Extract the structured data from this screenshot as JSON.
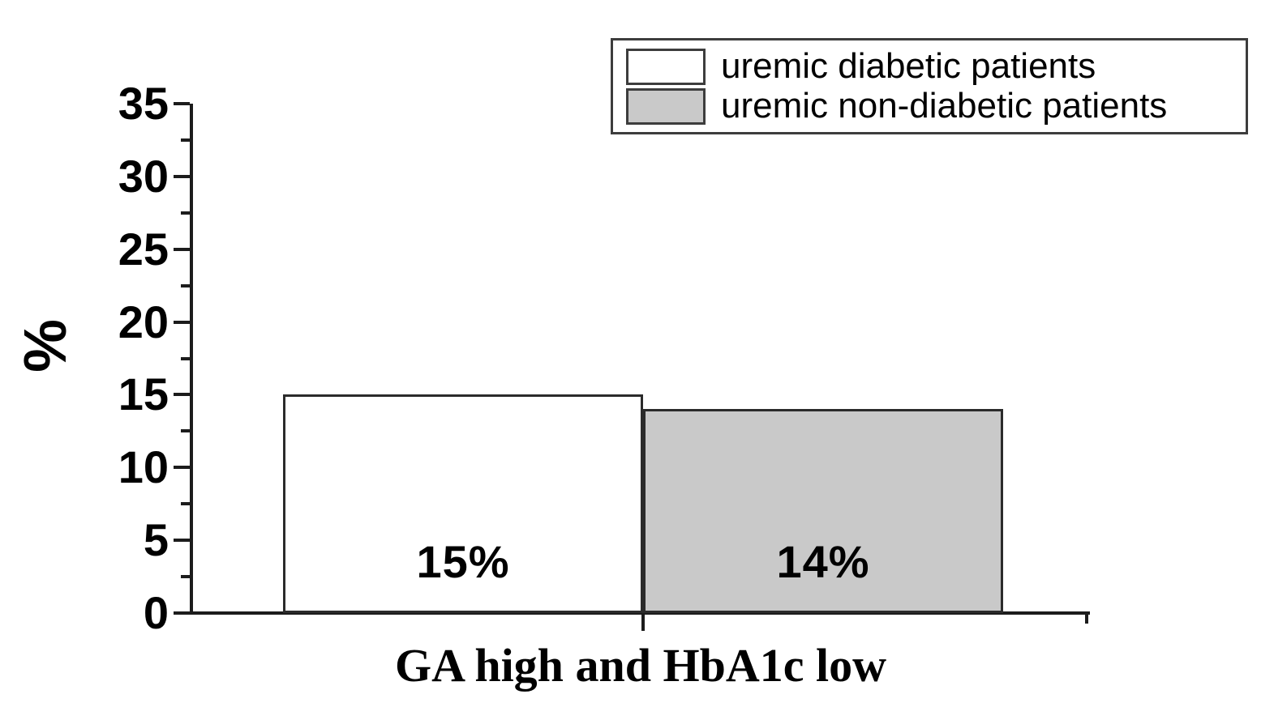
{
  "chart_data": {
    "type": "bar",
    "categories": [
      "GA high and HbA1c low"
    ],
    "series": [
      {
        "name": "uremic diabetic patients",
        "values": [
          15
        ],
        "fill": "#ffffff"
      },
      {
        "name": "uremic non-diabetic patients",
        "values": [
          14
        ],
        "fill": "#c9c9c9"
      }
    ],
    "bar_labels": [
      "15%",
      "14%"
    ],
    "title": "",
    "xlabel": "GA high and HbA1c low",
    "ylabel": "%",
    "ylim": [
      0,
      35
    ],
    "yticks": [
      "0",
      "5",
      "10",
      "15",
      "20",
      "25",
      "30",
      "35"
    ],
    "ytick_step": 5,
    "yminor_step": 2.5,
    "grid": false,
    "legend_position": "top-right"
  },
  "legend": {
    "items": [
      {
        "label": "uremic diabetic patients",
        "swatch_color": "#ffffff"
      },
      {
        "label": "uremic non-diabetic patients",
        "swatch_color": "#c9c9c9"
      }
    ]
  },
  "colors": {
    "axis": "#1c1c1c",
    "bar_border": "#2b2b2b",
    "legend_border": "#3d3d3d",
    "text": "#000000",
    "background": "#ffffff"
  }
}
